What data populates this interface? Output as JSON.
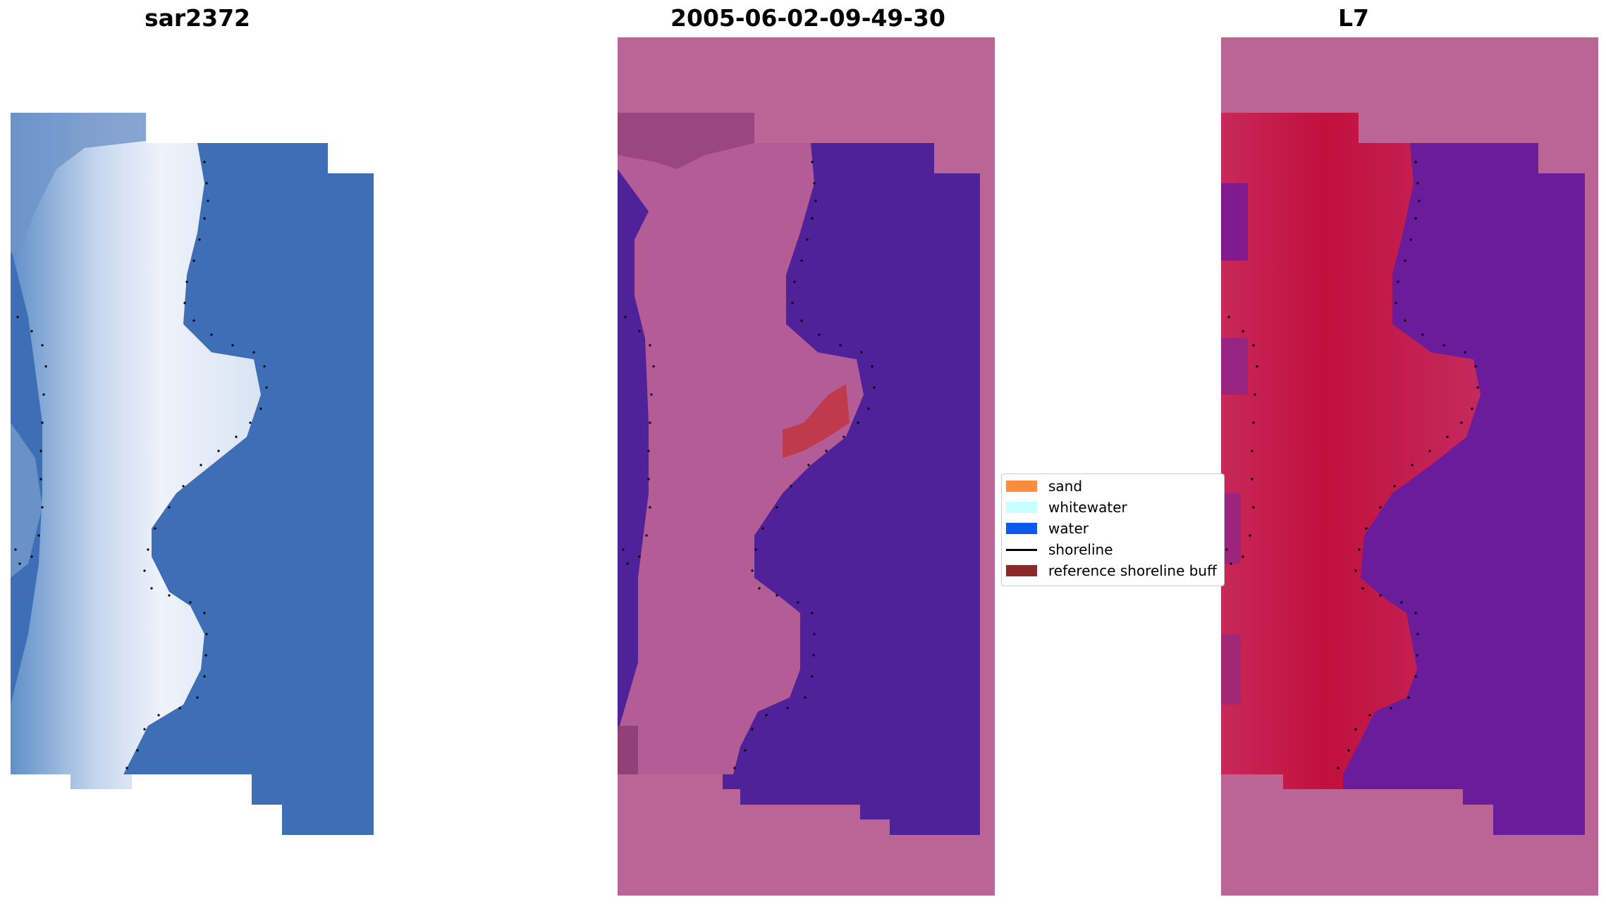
{
  "panels": {
    "left_title": "sar2372",
    "middle_title": "2005-06-02-09-49-30",
    "right_title": "L7"
  },
  "legend": {
    "items": [
      {
        "label": "sand",
        "type": "patch",
        "color": "#ff8c3c"
      },
      {
        "label": "whitewater",
        "type": "patch",
        "color": "#c8ffff"
      },
      {
        "label": "water",
        "type": "patch",
        "color": "#0a5af0"
      },
      {
        "label": "shoreline",
        "type": "line",
        "color": "#000000"
      },
      {
        "label": "reference shoreline buff",
        "type": "patch",
        "color": "#8c2a2a"
      }
    ]
  },
  "colors": {
    "rgb_water": "#3e6fb6",
    "rgb_sand": "#dfe6f4",
    "classified_water": "#50229a",
    "classified_land": "#b45c96",
    "mask": "#bb6596",
    "ndwi_land": "#c1123e",
    "ndwi_water": "#6a1c9a"
  }
}
